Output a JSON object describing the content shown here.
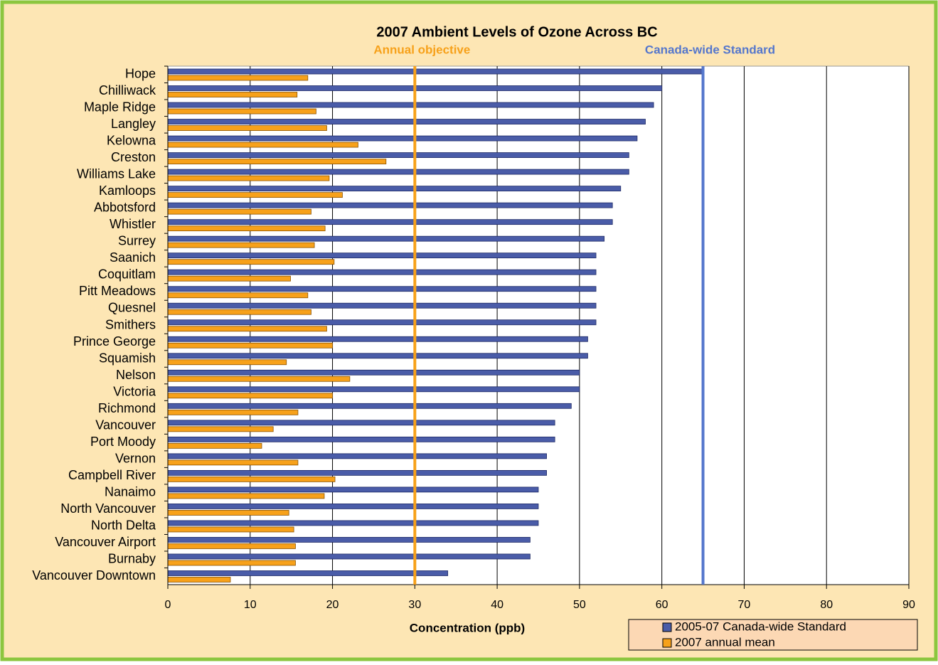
{
  "chart_data": {
    "type": "hbar",
    "title": "2007 Ambient  Levels of Ozone Across BC",
    "xlabel": "Concentration (ppb)",
    "categories": [
      "Hope",
      "Chilliwack",
      "Maple Ridge",
      "Langley",
      "Kelowna",
      "Creston",
      "Williams Lake",
      "Kamloops",
      "Abbotsford",
      "Whistler",
      "Surrey",
      "Saanich",
      "Coquitlam",
      "Pitt Meadows",
      "Quesnel",
      "Smithers",
      "Prince George",
      "Squamish",
      "Nelson",
      "Victoria",
      "Richmond",
      "Vancouver",
      "Port Moody",
      "Vernon",
      "Campbell River",
      "Nanaimo",
      "North Vancouver",
      "North Delta",
      "Vancouver Airport",
      "Burnaby",
      "Vancouver Downtown"
    ],
    "series": [
      {
        "name": "2005-07 Canada-wide Standard",
        "color": "#4a5ca8",
        "values": [
          65,
          60,
          59,
          58,
          57,
          56,
          56,
          55,
          54,
          54,
          53,
          52,
          52,
          52,
          52,
          52,
          51,
          51,
          50,
          50,
          49,
          47,
          47,
          46,
          46,
          45,
          45,
          45,
          44,
          44,
          34
        ]
      },
      {
        "name": "2007 annual mean",
        "color": "#f7a11a",
        "values": [
          17,
          15.7,
          18,
          19.3,
          23.1,
          26.5,
          19.6,
          21.2,
          17.4,
          19.1,
          17.8,
          20.2,
          14.9,
          17,
          17.4,
          19.3,
          20,
          14.4,
          22.1,
          20,
          15.8,
          12.8,
          11.4,
          15.8,
          20.3,
          19,
          14.7,
          15.3,
          15.5,
          15.5,
          7.6
        ]
      }
    ],
    "reference_lines": [
      {
        "label": "Annual objective",
        "value": 30,
        "color": "#f7a11a"
      },
      {
        "label": "Canada-wide Standard",
        "value": 65,
        "color": "#5577cc"
      }
    ],
    "xlim": [
      0,
      90
    ],
    "xticks": [
      0,
      10,
      20,
      30,
      40,
      50,
      60,
      70,
      80,
      90
    ],
    "grid": true,
    "legend": "bottom-right"
  }
}
